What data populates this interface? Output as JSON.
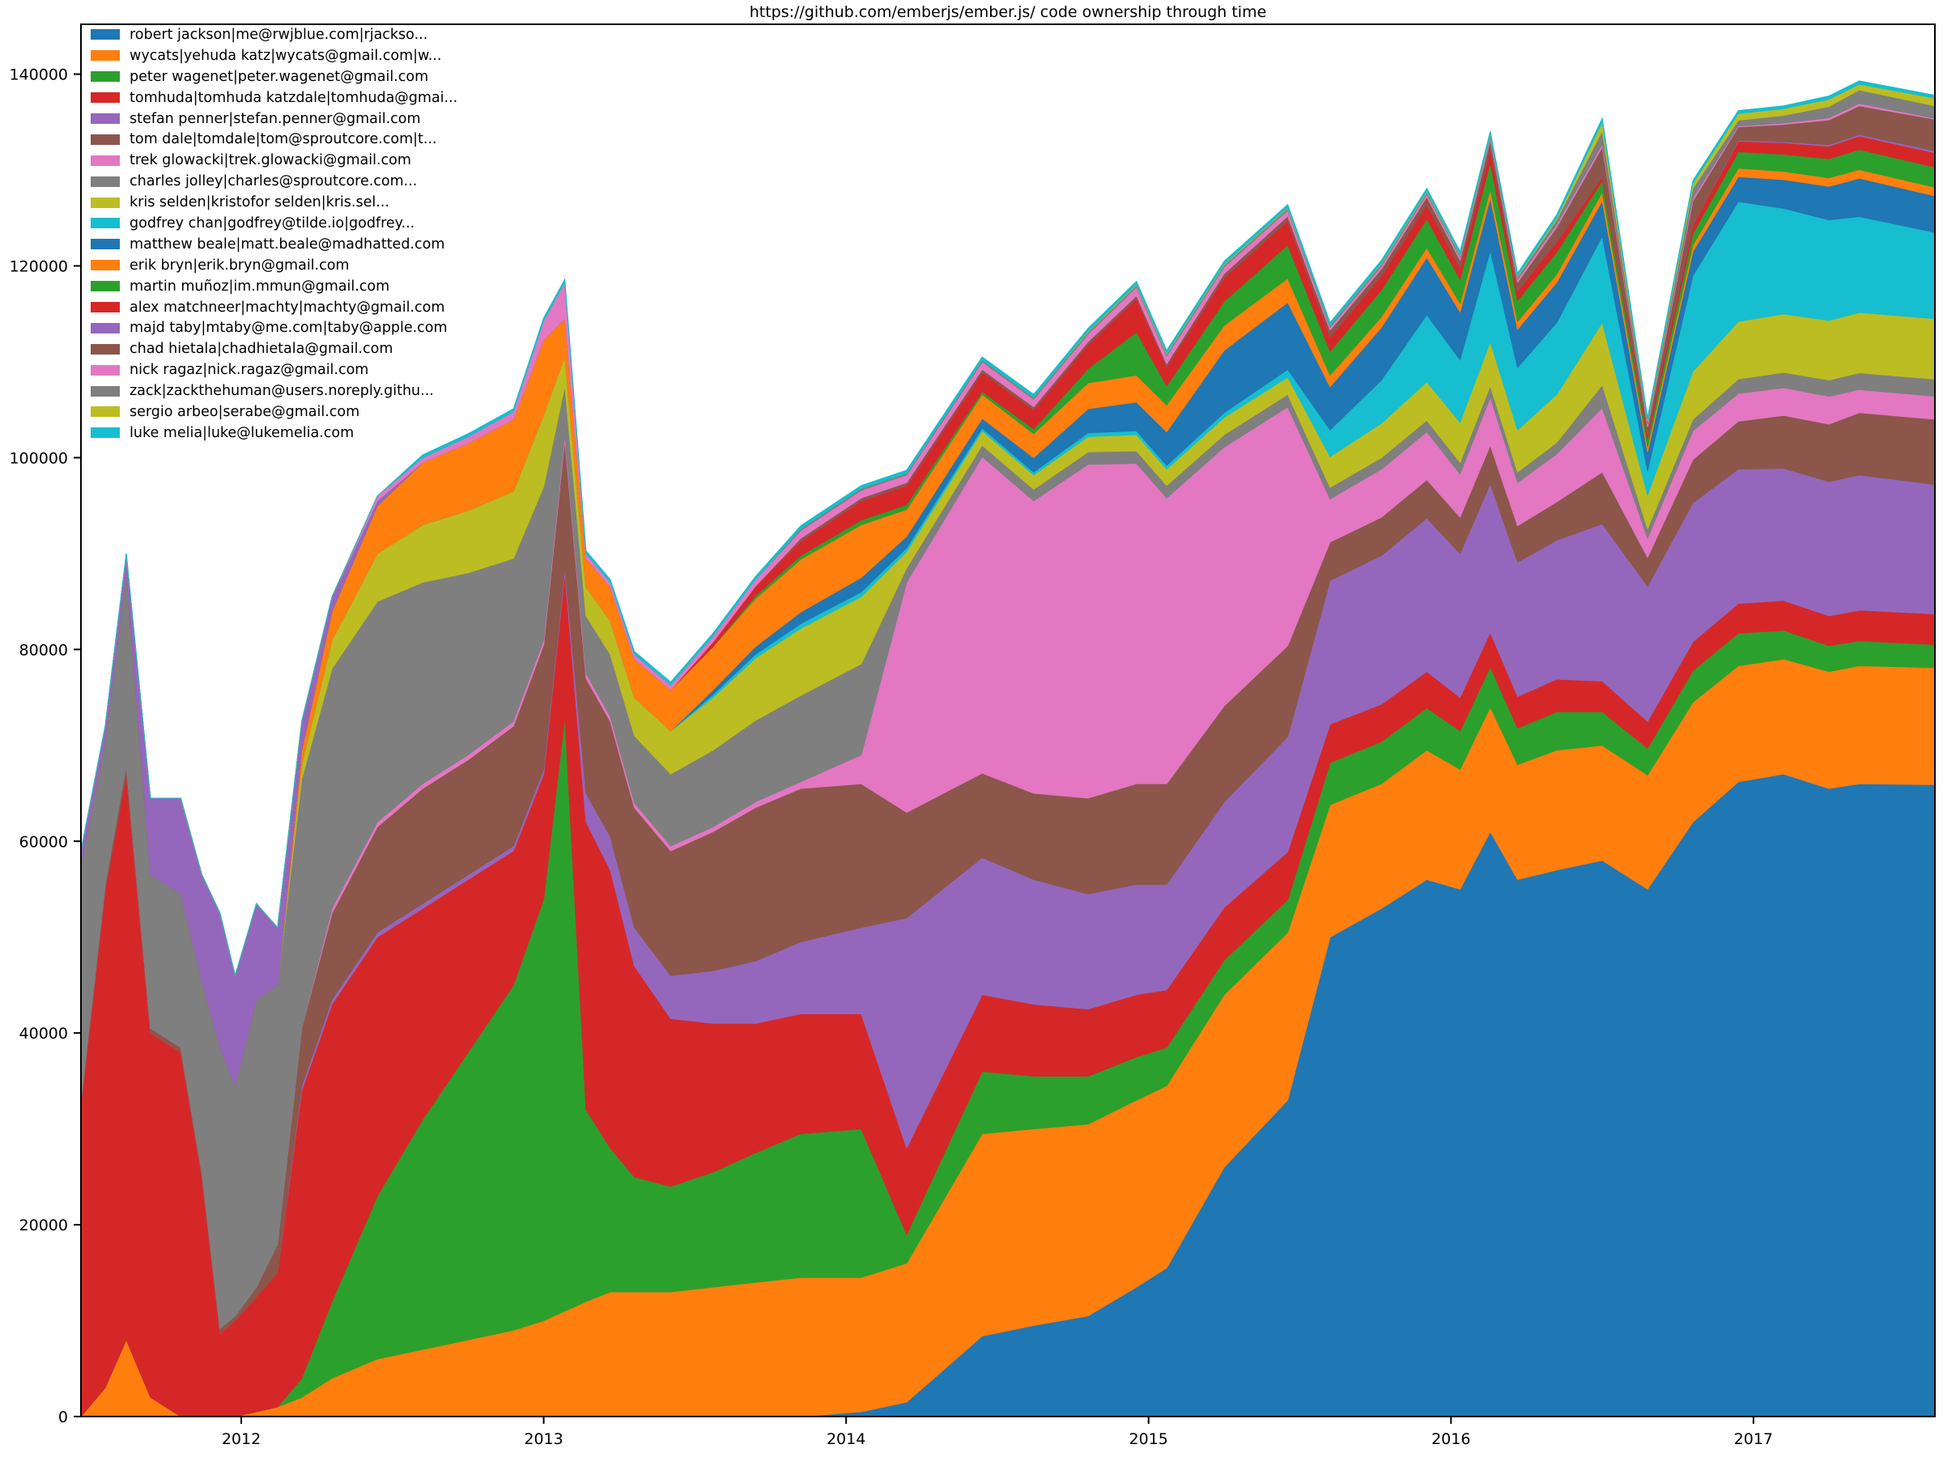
{
  "window": {
    "title": "https://github.com/emberjs/ember.js/ code ownership through time"
  },
  "chart_data": {
    "type": "area",
    "stacked": true,
    "title": "https://github.com/emberjs/ember.js/ code ownership through time",
    "xlabel": "",
    "ylabel": "",
    "grid": false,
    "background_color": "#ffffff",
    "legend_position": "upper left",
    "xlim": [
      2011.47,
      2017.6
    ],
    "ylim": [
      0,
      145200
    ],
    "yticks": [
      0,
      20000,
      40000,
      60000,
      80000,
      100000,
      120000,
      140000
    ],
    "xticks": [
      2012,
      2013,
      2014,
      2015,
      2016,
      2017
    ],
    "x": [
      2011.47,
      2011.55,
      2011.62,
      2011.7,
      2011.8,
      2011.87,
      2011.93,
      2011.98,
      2012.05,
      2012.12,
      2012.2,
      2012.3,
      2012.45,
      2012.6,
      2012.75,
      2012.9,
      2013.0,
      2013.07,
      2013.14,
      2013.22,
      2013.3,
      2013.42,
      2013.56,
      2013.7,
      2013.85,
      2014.05,
      2014.2,
      2014.45,
      2014.62,
      2014.8,
      2014.96,
      2015.06,
      2015.25,
      2015.46,
      2015.6,
      2015.77,
      2015.92,
      2016.03,
      2016.13,
      2016.22,
      2016.35,
      2016.5,
      2016.65,
      2016.8,
      2016.95,
      2017.1,
      2017.25,
      2017.35,
      2017.6
    ],
    "series": [
      {
        "name": "robert jackson|me@rwjblue.com|rjackso...",
        "color": "#1f77b4",
        "values": [
          0,
          0,
          0,
          0,
          0,
          0,
          0,
          0,
          0,
          0,
          0,
          0,
          0,
          0,
          0,
          0,
          0,
          0,
          0,
          0,
          0,
          0,
          0,
          0,
          0,
          500,
          1500,
          8400,
          9500,
          10500,
          13500,
          15500,
          26000,
          33000,
          50000,
          53000,
          56000,
          55000,
          61000,
          56000,
          57000,
          58000,
          55000,
          62000,
          66200,
          67000,
          65500,
          66000,
          65900
        ]
      },
      {
        "name": "wycats|yehuda katz|wycats@gmail.com|w...",
        "color": "#ff7f0e",
        "values": [
          0,
          3000,
          8000,
          2000,
          0,
          0,
          0,
          0,
          500,
          1000,
          2000,
          4000,
          6000,
          7000,
          8000,
          9000,
          10000,
          11000,
          12000,
          13000,
          13000,
          13000,
          13500,
          14000,
          14500,
          14000,
          14500,
          21100,
          20500,
          20000,
          19500,
          19000,
          18000,
          17500,
          13800,
          13000,
          13500,
          12500,
          13000,
          12000,
          12500,
          12000,
          11900,
          12500,
          12100,
          12000,
          12200,
          12300,
          12200
        ]
      },
      {
        "name": "peter wagenet|peter.wagenet@gmail.com",
        "color": "#2ca02c",
        "values": [
          0,
          0,
          0,
          0,
          0,
          0,
          0,
          0,
          0,
          0,
          2000,
          8000,
          17000,
          24000,
          30000,
          36000,
          44000,
          62000,
          20000,
          15000,
          12000,
          11000,
          12000,
          13500,
          15000,
          15500,
          3000,
          6500,
          5500,
          5000,
          4500,
          4000,
          3600,
          3400,
          4400,
          4400,
          4400,
          4000,
          4200,
          3800,
          4000,
          3500,
          2800,
          3300,
          3400,
          3000,
          2700,
          2600,
          2400
        ]
      },
      {
        "name": "tomhuda|tomhuda katzdale|tomhuda@gmai...",
        "color": "#d62728",
        "values": [
          32500,
          52000,
          59000,
          38000,
          38000,
          25000,
          8700,
          10000,
          12000,
          14000,
          30000,
          31000,
          27000,
          22000,
          18000,
          14000,
          13000,
          15000,
          30000,
          29000,
          22000,
          17500,
          15500,
          13500,
          12500,
          12000,
          9000,
          8000,
          7500,
          7000,
          6500,
          6000,
          5500,
          5000,
          4000,
          3900,
          3800,
          3500,
          3600,
          3300,
          3400,
          3200,
          2800,
          3000,
          3100,
          3100,
          3100,
          3200,
          3200
        ]
      },
      {
        "name": "stefan penner|stefan.penner@gmail.com",
        "color": "#9467bd",
        "values": [
          0,
          0,
          0,
          0,
          0,
          0,
          0,
          0,
          0,
          0,
          500,
          500,
          500,
          500,
          500,
          500,
          500,
          500,
          3000,
          3500,
          4000,
          4500,
          5500,
          6500,
          7500,
          9000,
          24000,
          14300,
          13000,
          12000,
          11500,
          11000,
          11000,
          12000,
          15000,
          15500,
          16000,
          15000,
          15500,
          14000,
          14500,
          16400,
          14100,
          14500,
          14000,
          13800,
          14000,
          14100,
          13500
        ]
      },
      {
        "name": "tom dale|tomdale|tom@sproutcore.com|t...",
        "color": "#8c564b",
        "values": [
          500,
          500,
          1000,
          500,
          500,
          500,
          500,
          500,
          1000,
          3000,
          6000,
          9000,
          11000,
          12000,
          12000,
          12500,
          13000,
          13400,
          12000,
          12000,
          12500,
          13000,
          14500,
          16000,
          16000,
          15000,
          11000,
          8800,
          9000,
          10000,
          10500,
          10500,
          10000,
          9500,
          4000,
          4000,
          4000,
          3800,
          4000,
          3800,
          4000,
          5400,
          3000,
          4500,
          5000,
          5500,
          6000,
          6500,
          6800
        ]
      },
      {
        "name": "trek glowacki|trek.glowacki@gmail.com",
        "color": "#e377c2",
        "values": [
          0,
          0,
          0,
          0,
          0,
          0,
          0,
          0,
          0,
          0,
          0,
          500,
          500,
          500,
          500,
          500,
          500,
          500,
          500,
          500,
          500,
          500,
          500,
          600,
          700,
          3000,
          24000,
          33000,
          30500,
          34800,
          33400,
          29800,
          27000,
          24900,
          4500,
          5000,
          5000,
          4500,
          5000,
          4500,
          5000,
          6700,
          2000,
          3000,
          2900,
          2900,
          2900,
          2400,
          2400
        ]
      },
      {
        "name": "charles jolley|charles@sproutcore.com...",
        "color": "#7f7f7f",
        "values": [
          24500,
          15000,
          20000,
          16000,
          16000,
          20000,
          29300,
          24000,
          30000,
          27000,
          26000,
          25000,
          23000,
          21000,
          19000,
          17000,
          16000,
          5100,
          6000,
          6500,
          7000,
          7500,
          8000,
          8500,
          9000,
          9500,
          1500,
          1200,
          1200,
          1300,
          1300,
          1300,
          1300,
          1300,
          1200,
          1200,
          1200,
          1200,
          1200,
          1100,
          1200,
          2400,
          1000,
          1200,
          1500,
          1600,
          1700,
          1750,
          1800
        ]
      },
      {
        "name": "kris selden|kristofor selden|kris.sel...",
        "color": "#bcbd22",
        "values": [
          0,
          0,
          0,
          0,
          0,
          0,
          0,
          0,
          0,
          0,
          1500,
          3000,
          5000,
          6000,
          6500,
          7000,
          7500,
          3100,
          3000,
          3500,
          4000,
          4500,
          5500,
          6500,
          7000,
          7000,
          1700,
          1500,
          1500,
          1600,
          1700,
          1700,
          1800,
          1800,
          3200,
          3600,
          4000,
          4200,
          4600,
          4400,
          5000,
          6500,
          3500,
          5000,
          6000,
          6100,
          6200,
          6300,
          6300
        ]
      },
      {
        "name": "godfrey chan|godfrey@tilde.io|godfrey...",
        "color": "#17becf",
        "values": [
          0,
          0,
          0,
          0,
          0,
          0,
          0,
          0,
          0,
          0,
          0,
          0,
          0,
          0,
          0,
          0,
          0,
          0,
          0,
          0,
          0,
          0,
          300,
          400,
          500,
          500,
          400,
          300,
          300,
          400,
          400,
          400,
          500,
          800,
          2800,
          4500,
          7000,
          6500,
          9500,
          6500,
          7500,
          9000,
          2500,
          10000,
          12500,
          11000,
          10500,
          10000,
          9000
        ]
      },
      {
        "name": "matthew beale|matt.beale@madhatted.com",
        "color": "#1f77b4",
        "values": [
          0,
          0,
          0,
          0,
          0,
          0,
          0,
          0,
          0,
          0,
          0,
          0,
          0,
          0,
          0,
          0,
          0,
          0,
          0,
          0,
          0,
          0,
          500,
          800,
          1200,
          1500,
          1200,
          1000,
          1500,
          2500,
          3000,
          3500,
          6500,
          7000,
          4500,
          5500,
          6000,
          5000,
          5500,
          4000,
          4200,
          3700,
          2000,
          2500,
          2600,
          3000,
          3500,
          4000,
          3800
        ]
      },
      {
        "name": "erik bryn|erik.bryn@gmail.com",
        "color": "#ff7f0e",
        "values": [
          0,
          0,
          0,
          0,
          0,
          0,
          0,
          0,
          0,
          0,
          1500,
          3000,
          5000,
          6500,
          7000,
          7500,
          7800,
          3900,
          3000,
          3500,
          4000,
          4300,
          4500,
          5000,
          5500,
          5500,
          2800,
          2500,
          2500,
          2700,
          2800,
          2800,
          2600,
          2500,
          1200,
          1100,
          1000,
          900,
          900,
          800,
          850,
          900,
          500,
          700,
          900,
          850,
          880,
          900,
          900
        ]
      },
      {
        "name": "martin muñoz|im.mmun@gmail.com",
        "color": "#2ca02c",
        "values": [
          0,
          0,
          0,
          0,
          0,
          0,
          0,
          0,
          0,
          0,
          0,
          0,
          0,
          0,
          0,
          0,
          0,
          0,
          0,
          0,
          0,
          0,
          0,
          300,
          400,
          500,
          500,
          300,
          500,
          1500,
          4500,
          2000,
          2500,
          3500,
          2500,
          2800,
          3000,
          2500,
          2800,
          2200,
          2300,
          1200,
          800,
          1200,
          1700,
          1800,
          2000,
          2100,
          2100
        ]
      },
      {
        "name": "alex matchneer|machty|machty@gmail.com",
        "color": "#d62728",
        "values": [
          0,
          0,
          0,
          0,
          0,
          0,
          0,
          0,
          0,
          0,
          0,
          0,
          0,
          0,
          0,
          0,
          0,
          0,
          0,
          0,
          0,
          0,
          500,
          1000,
          1500,
          2000,
          2000,
          2000,
          2000,
          2500,
          3500,
          2000,
          2500,
          2500,
          1500,
          1500,
          1500,
          1200,
          1400,
          1000,
          1100,
          400,
          500,
          900,
          1100,
          1200,
          1300,
          1400,
          1500
        ]
      },
      {
        "name": "majd taby|mtaby@me.com|taby@apple.com",
        "color": "#9467bd",
        "values": [
          1500,
          1500,
          2000,
          8000,
          10000,
          11000,
          14000,
          11500,
          10000,
          6000,
          3000,
          1500,
          500,
          0,
          0,
          0,
          0,
          0,
          0,
          0,
          0,
          0,
          0,
          0,
          0,
          0,
          0,
          0,
          0,
          0,
          0,
          0,
          0,
          0,
          0,
          0,
          0,
          0,
          0,
          0,
          0,
          0,
          0,
          0,
          100,
          100,
          150,
          150,
          200
        ]
      },
      {
        "name": "chad hietala|chadhietala@gmail.com",
        "color": "#8c564b",
        "values": [
          0,
          0,
          0,
          0,
          0,
          0,
          0,
          0,
          0,
          0,
          0,
          0,
          0,
          0,
          0,
          0,
          0,
          0,
          0,
          0,
          0,
          0,
          0,
          0,
          300,
          300,
          300,
          300,
          300,
          300,
          300,
          300,
          400,
          500,
          700,
          700,
          800,
          800,
          900,
          900,
          1500,
          3100,
          800,
          2500,
          1400,
          1800,
          2600,
          3000,
          3300
        ]
      },
      {
        "name": "nick ragaz|nick.ragaz@gmail.com",
        "color": "#e377c2",
        "values": [
          0,
          0,
          0,
          0,
          0,
          0,
          0,
          0,
          0,
          0,
          0,
          0,
          500,
          500,
          700,
          800,
          2000,
          3800,
          500,
          500,
          500,
          500,
          600,
          700,
          800,
          800,
          800,
          800,
          800,
          800,
          900,
          800,
          700,
          600,
          300,
          300,
          300,
          300,
          300,
          300,
          300,
          300,
          300,
          300,
          100,
          150,
          200,
          250,
          100
        ]
      },
      {
        "name": "zack|zackthehuman@users.noreply.githu...",
        "color": "#7f7f7f",
        "values": [
          0,
          0,
          0,
          0,
          0,
          0,
          0,
          0,
          0,
          0,
          0,
          0,
          0,
          0,
          0,
          0,
          0,
          0,
          0,
          0,
          0,
          0,
          0,
          0,
          200,
          200,
          200,
          200,
          200,
          200,
          200,
          200,
          200,
          200,
          200,
          200,
          200,
          200,
          250,
          250,
          500,
          1400,
          300,
          1000,
          600,
          800,
          1200,
          1400,
          1300
        ]
      },
      {
        "name": "sergio arbeo|serabe@gmail.com",
        "color": "#bcbd22",
        "values": [
          0,
          0,
          0,
          0,
          0,
          0,
          0,
          0,
          0,
          0,
          0,
          0,
          0,
          0,
          0,
          0,
          0,
          0,
          0,
          0,
          0,
          0,
          0,
          0,
          0,
          0,
          0,
          0,
          0,
          100,
          100,
          100,
          100,
          100,
          0,
          100,
          100,
          100,
          100,
          100,
          200,
          900,
          100,
          500,
          700,
          700,
          750,
          600,
          800
        ]
      },
      {
        "name": "luke melia|luke@lukemelia.com",
        "color": "#17becf",
        "values": [
          0,
          0,
          0,
          0,
          0,
          0,
          0,
          0,
          0,
          0,
          0,
          0,
          0,
          300,
          300,
          300,
          300,
          300,
          300,
          300,
          300,
          300,
          300,
          300,
          300,
          300,
          300,
          300,
          300,
          300,
          300,
          300,
          300,
          300,
          300,
          300,
          300,
          300,
          300,
          300,
          300,
          400,
          300,
          300,
          300,
          300,
          350,
          350,
          300
        ]
      }
    ]
  }
}
